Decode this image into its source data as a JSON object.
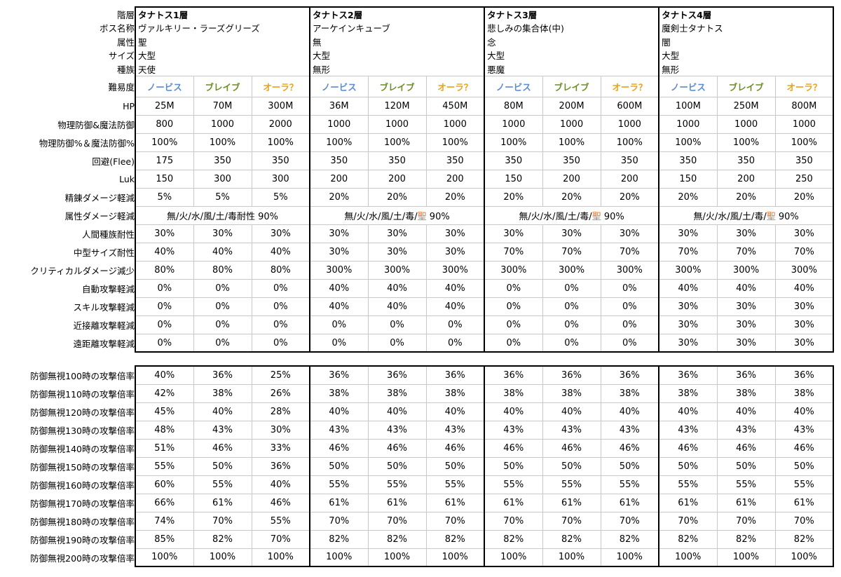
{
  "info_labels": [
    "階層",
    "ボス名称",
    "属性",
    "サイズ",
    "種族"
  ],
  "floors": [
    {
      "info": [
        "タナトス1層",
        "ヴァルキリー・ラーズグリーズ",
        "聖",
        "大型",
        "天使"
      ]
    },
    {
      "info": [
        "タナトス2層",
        "アーケインキューブ",
        "無",
        "大型",
        "無形"
      ]
    },
    {
      "info": [
        "タナトス3層",
        "悲しみの集合体(中)",
        "念",
        "大型",
        "悪魔"
      ]
    },
    {
      "info": [
        "タナトス4層",
        "魔剣士タナトス",
        "闇",
        "大型",
        "無形"
      ]
    }
  ],
  "difficulty_label": "難易度",
  "difficulties": [
    "ノービス",
    "ブレイブ",
    "オーラ？"
  ],
  "stat_rows": [
    {
      "label": "HP",
      "values": [
        "25M",
        "70M",
        "300M",
        "36M",
        "120M",
        "450M",
        "80M",
        "200M",
        "600M",
        "100M",
        "250M",
        "800M"
      ]
    },
    {
      "label": "物理防御&魔法防御",
      "values": [
        "800",
        "1000",
        "2000",
        "1000",
        "1000",
        "1000",
        "1000",
        "1000",
        "1000",
        "1000",
        "1000",
        "1000"
      ]
    },
    {
      "label": "物理防御%＆魔法防御%",
      "values": [
        "100%",
        "100%",
        "100%",
        "100%",
        "100%",
        "100%",
        "100%",
        "100%",
        "100%",
        "100%",
        "100%",
        "100%"
      ]
    },
    {
      "label": "回避(Flee)",
      "values": [
        "175",
        "350",
        "350",
        "350",
        "350",
        "350",
        "350",
        "350",
        "350",
        "350",
        "350",
        "350"
      ]
    },
    {
      "label": "Luk",
      "values": [
        "150",
        "300",
        "300",
        "200",
        "200",
        "200",
        "150",
        "200",
        "200",
        "150",
        "200",
        "250"
      ]
    },
    {
      "label": "精錬ダメージ軽減",
      "values": [
        "5%",
        "5%",
        "5%",
        "20%",
        "20%",
        "20%",
        "20%",
        "20%",
        "20%",
        "20%",
        "20%",
        "20%"
      ]
    }
  ],
  "element_row": {
    "label": "属性ダメージ軽減",
    "floors": [
      {
        "prefix": "無/火/水/風/土/毒耐性 90%",
        "highlight": "",
        "suffix": ""
      },
      {
        "prefix": "無/火/水/風/土/毒/",
        "highlight": "聖",
        "suffix": " 90%"
      },
      {
        "prefix": "無/火/水/風/土/毒/",
        "highlight": "聖",
        "suffix": " 90%"
      },
      {
        "prefix": "無/火/水/風/土/毒/",
        "highlight": "聖",
        "suffix": " 90%"
      }
    ]
  },
  "stat_rows2": [
    {
      "label": "人間種族耐性",
      "values": [
        "30%",
        "30%",
        "30%",
        "30%",
        "30%",
        "30%",
        "30%",
        "30%",
        "30%",
        "30%",
        "30%",
        "30%"
      ]
    },
    {
      "label": "中型サイズ耐性",
      "values": [
        "40%",
        "40%",
        "40%",
        "30%",
        "30%",
        "30%",
        "70%",
        "70%",
        "70%",
        "70%",
        "70%",
        "70%"
      ]
    },
    {
      "label": "クリティカルダメージ減少",
      "values": [
        "80%",
        "80%",
        "80%",
        "300%",
        "300%",
        "300%",
        "300%",
        "300%",
        "300%",
        "300%",
        "300%",
        "300%"
      ]
    },
    {
      "label": "自動攻撃軽減",
      "values": [
        "0%",
        "0%",
        "0%",
        "40%",
        "40%",
        "40%",
        "0%",
        "0%",
        "0%",
        "40%",
        "40%",
        "40%"
      ]
    },
    {
      "label": "スキル攻撃軽減",
      "values": [
        "0%",
        "0%",
        "0%",
        "40%",
        "40%",
        "40%",
        "0%",
        "0%",
        "0%",
        "30%",
        "30%",
        "30%"
      ]
    },
    {
      "label": "近接離攻撃軽減",
      "values": [
        "0%",
        "0%",
        "0%",
        "0%",
        "0%",
        "0%",
        "0%",
        "0%",
        "0%",
        "30%",
        "30%",
        "30%"
      ]
    },
    {
      "label": "遠距離攻撃軽減",
      "values": [
        "0%",
        "0%",
        "0%",
        "0%",
        "0%",
        "0%",
        "0%",
        "0%",
        "0%",
        "30%",
        "30%",
        "30%"
      ]
    }
  ],
  "ratio_rows": [
    {
      "label": "防御無視100時の攻撃倍率",
      "values": [
        "40%",
        "36%",
        "25%",
        "36%",
        "36%",
        "36%",
        "36%",
        "36%",
        "36%",
        "36%",
        "36%",
        "36%"
      ]
    },
    {
      "label": "防御無視110時の攻撃倍率",
      "values": [
        "42%",
        "38%",
        "26%",
        "38%",
        "38%",
        "38%",
        "38%",
        "38%",
        "38%",
        "38%",
        "38%",
        "38%"
      ]
    },
    {
      "label": "防御無視120時の攻撃倍率",
      "values": [
        "45%",
        "40%",
        "28%",
        "40%",
        "40%",
        "40%",
        "40%",
        "40%",
        "40%",
        "40%",
        "40%",
        "40%"
      ]
    },
    {
      "label": "防御無視130時の攻撃倍率",
      "values": [
        "48%",
        "43%",
        "30%",
        "43%",
        "43%",
        "43%",
        "43%",
        "43%",
        "43%",
        "43%",
        "43%",
        "43%"
      ]
    },
    {
      "label": "防御無視140時の攻撃倍率",
      "values": [
        "51%",
        "46%",
        "33%",
        "46%",
        "46%",
        "46%",
        "46%",
        "46%",
        "46%",
        "46%",
        "46%",
        "46%"
      ]
    },
    {
      "label": "防御無視150時の攻撃倍率",
      "values": [
        "55%",
        "50%",
        "36%",
        "50%",
        "50%",
        "50%",
        "50%",
        "50%",
        "50%",
        "50%",
        "50%",
        "50%"
      ]
    },
    {
      "label": "防御無視160時の攻撃倍率",
      "values": [
        "60%",
        "55%",
        "40%",
        "55%",
        "55%",
        "55%",
        "55%",
        "55%",
        "55%",
        "55%",
        "55%",
        "55%"
      ]
    },
    {
      "label": "防御無視170時の攻撃倍率",
      "values": [
        "66%",
        "61%",
        "46%",
        "61%",
        "61%",
        "61%",
        "61%",
        "61%",
        "61%",
        "61%",
        "61%",
        "61%"
      ]
    },
    {
      "label": "防御無視180時の攻撃倍率",
      "values": [
        "74%",
        "70%",
        "55%",
        "70%",
        "70%",
        "70%",
        "70%",
        "70%",
        "70%",
        "70%",
        "70%",
        "70%"
      ]
    },
    {
      "label": "防御無視190時の攻撃倍率",
      "values": [
        "85%",
        "82%",
        "70%",
        "82%",
        "82%",
        "82%",
        "82%",
        "82%",
        "82%",
        "82%",
        "82%",
        "82%"
      ]
    },
    {
      "label": "防御無視200時の攻撃倍率",
      "values": [
        "100%",
        "100%",
        "100%",
        "100%",
        "100%",
        "100%",
        "100%",
        "100%",
        "100%",
        "100%",
        "100%",
        "100%"
      ]
    }
  ]
}
